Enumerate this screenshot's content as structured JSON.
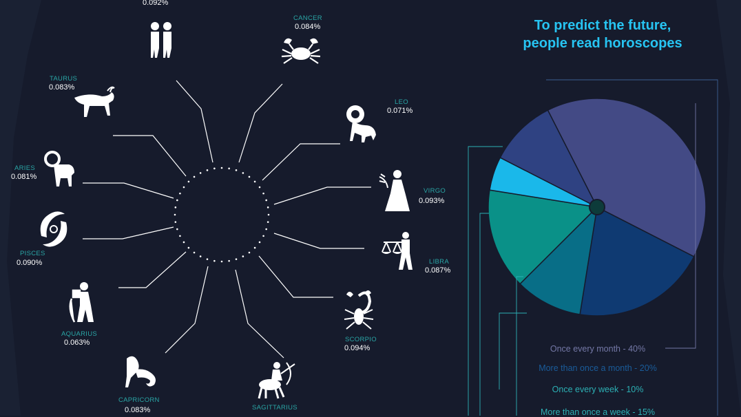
{
  "title": [
    "To predict the future,",
    "people read horoscopes"
  ],
  "signs": [
    {
      "key": "gemini",
      "name": "",
      "value": "0.092%",
      "icon": "gemini-twins-icon"
    },
    {
      "key": "cancer",
      "name": "CANCER",
      "value": "0.084%",
      "icon": "cancer-crab-icon"
    },
    {
      "key": "leo",
      "name": "LEO",
      "value": "0.071%",
      "icon": "leo-lion-icon"
    },
    {
      "key": "virgo",
      "name": "VIRGO",
      "value": "0.093%",
      "icon": "virgo-maiden-icon"
    },
    {
      "key": "libra",
      "name": "LIBRA",
      "value": "0.087%",
      "icon": "libra-scales-icon"
    },
    {
      "key": "scorpio",
      "name": "SCORPIO",
      "value": "0.094%",
      "icon": "scorpio-scorpion-icon"
    },
    {
      "key": "sagittarius",
      "name": "SAGITTARIUS",
      "value": "",
      "icon": "sagittarius-archer-icon"
    },
    {
      "key": "capricorn",
      "name": "CAPRICORN",
      "value": "0.083%",
      "icon": "capricorn-goat-icon"
    },
    {
      "key": "aquarius",
      "name": "AQUARIUS",
      "value": "0.063%",
      "icon": "aquarius-water-bearer-icon"
    },
    {
      "key": "pisces",
      "name": "PISCES",
      "value": "0.090%",
      "icon": "pisces-fish-icon"
    },
    {
      "key": "aries",
      "name": "ARIES",
      "value": "0.081%",
      "icon": "aries-ram-icon"
    },
    {
      "key": "taurus",
      "name": "TAURUS",
      "value": "0.083%",
      "icon": "taurus-bull-icon"
    }
  ],
  "chart_data": {
    "type": "pie",
    "title": "",
    "slices": [
      {
        "label": "Once every month - 40%",
        "value": 40,
        "color": "#434a85"
      },
      {
        "label": "More than once a month - 20%",
        "value": 20,
        "color": "#0f3a72"
      },
      {
        "label": "Once every week - 10%",
        "value": 10,
        "color": "#086e87"
      },
      {
        "label": "More than once a week - 15%",
        "value": 15,
        "color": "#0a9188"
      },
      {
        "label": "",
        "value": 5,
        "color": "#1ab8ea"
      },
      {
        "label": "",
        "value": 10,
        "color": "#2f4282"
      }
    ],
    "legend_colors": [
      "#7478a6",
      "#1a5c9a",
      "#2cb0b4",
      "#2cb0b4"
    ]
  }
}
